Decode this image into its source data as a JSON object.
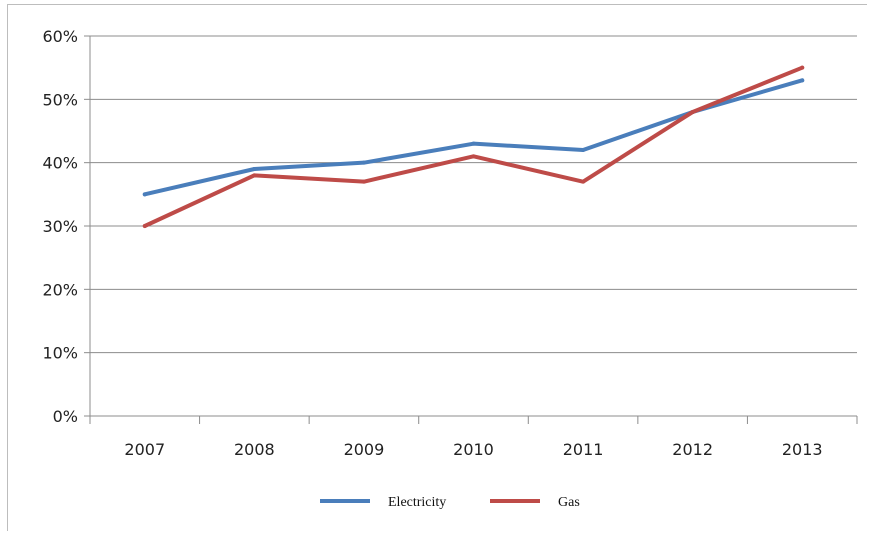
{
  "chart_data": {
    "type": "line",
    "title": "",
    "xlabel": "",
    "ylabel": "",
    "categories": [
      "2007",
      "2008",
      "2009",
      "2010",
      "2011",
      "2012",
      "2013"
    ],
    "ylim": [
      0,
      60
    ],
    "yticks": [
      "0%",
      "10%",
      "20%",
      "30%",
      "40%",
      "50%",
      "60%"
    ],
    "grid": true,
    "legend_position": "bottom",
    "series": [
      {
        "name": "Electricity",
        "color": "#4a7ebb",
        "values": [
          35,
          39,
          40,
          43,
          42,
          48,
          53
        ]
      },
      {
        "name": "Gas",
        "color": "#be4b48",
        "values": [
          30,
          38,
          37,
          41,
          37,
          48,
          55
        ]
      }
    ]
  }
}
